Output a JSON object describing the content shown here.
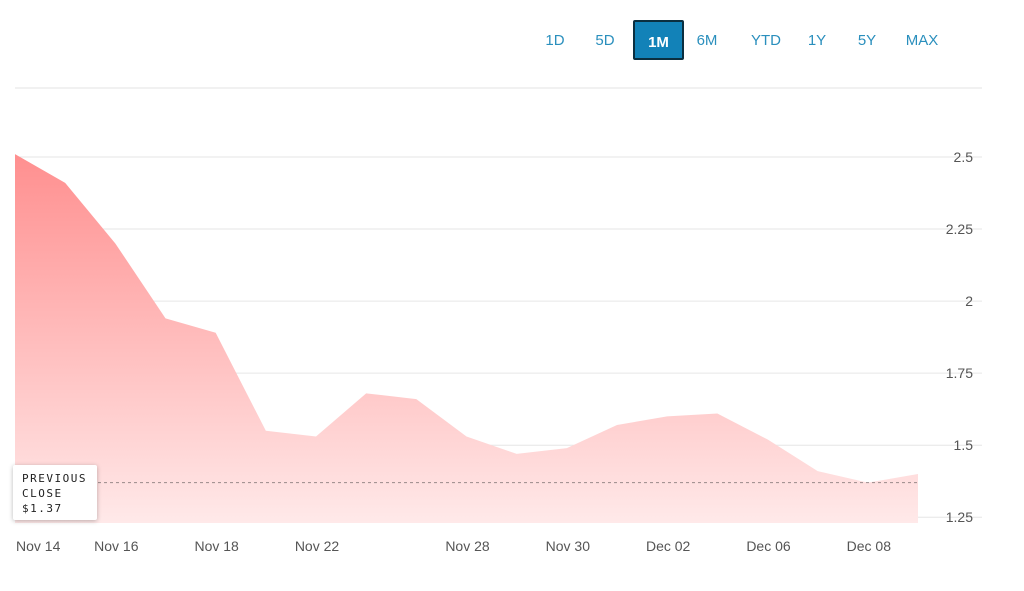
{
  "range_buttons": [
    {
      "label": "1D",
      "active": false
    },
    {
      "label": "5D",
      "active": false
    },
    {
      "label": "1M",
      "active": true
    },
    {
      "label": "6M",
      "active": false
    },
    {
      "label": "YTD",
      "active": false
    },
    {
      "label": "1Y",
      "active": false
    },
    {
      "label": "5Y",
      "active": false
    },
    {
      "label": "MAX",
      "active": false
    }
  ],
  "previous_close": {
    "line1": "PREVIOUS",
    "line2": "CLOSE",
    "value": "$1.37",
    "value_num": 1.37
  },
  "colors": {
    "area_top": "#ff8f8f",
    "area_bottom": "#ffe9e9",
    "accent": "#1282b8",
    "label": "#2a8fbd"
  },
  "chart_data": {
    "type": "area",
    "title": "",
    "xlabel": "",
    "ylabel": "",
    "x_tick_labels": [
      "Nov 14",
      "Nov 16",
      "Nov 18",
      "Nov 22",
      "Nov 28",
      "Nov 30",
      "Dec 02",
      "Dec 06",
      "Dec 08"
    ],
    "x_tick_indices": [
      0,
      2,
      4,
      6,
      9,
      11,
      13,
      15,
      17
    ],
    "y_ticks": [
      2.5,
      2.25,
      2,
      1.75,
      1.5,
      1.25
    ],
    "y_tick_labels": [
      "2.5",
      "2.25",
      "2",
      "1.75",
      "1.5",
      "1.25"
    ],
    "ylim": [
      1.23,
      2.5
    ],
    "grid": true,
    "series": [
      {
        "values": [
          2.51,
          2.41,
          2.2,
          1.94,
          1.89,
          1.55,
          1.53,
          1.68,
          1.66,
          1.53,
          1.47,
          1.49,
          1.57,
          1.6,
          1.61,
          1.52,
          1.41,
          1.37,
          1.4
        ]
      }
    ],
    "reference_line": {
      "value": 1.37,
      "style": "dashed"
    }
  }
}
